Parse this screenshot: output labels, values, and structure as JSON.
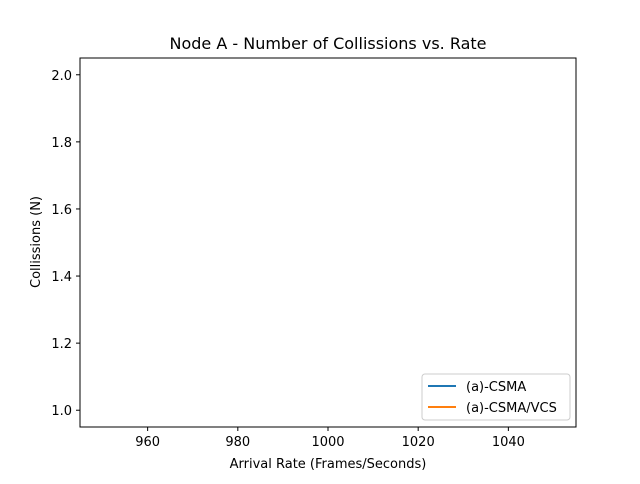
{
  "chart_data": {
    "type": "line",
    "title": "Node A - Number of Collissions vs. Rate",
    "xlabel": "Arrival Rate (Frames/Seconds)",
    "ylabel": "Collissions (N)",
    "xlim": [
      945,
      1055
    ],
    "ylim": [
      0.95,
      2.05
    ],
    "xticks": [
      960,
      980,
      1000,
      1020,
      1040
    ],
    "yticks": [
      1.0,
      1.2,
      1.4,
      1.6,
      1.8,
      2.0
    ],
    "xtick_labels": [
      "960",
      "980",
      "1000",
      "1020",
      "1040"
    ],
    "ytick_labels": [
      "1.0",
      "1.2",
      "1.4",
      "1.6",
      "1.8",
      "2.0"
    ],
    "grid": false,
    "legend_position": "lower-right",
    "series": [
      {
        "name": "(a)-CSMA",
        "color": "#1f77b4",
        "x": [],
        "y": []
      },
      {
        "name": "(a)-CSMA/VCS",
        "color": "#ff7f0e",
        "x": [],
        "y": []
      }
    ]
  }
}
